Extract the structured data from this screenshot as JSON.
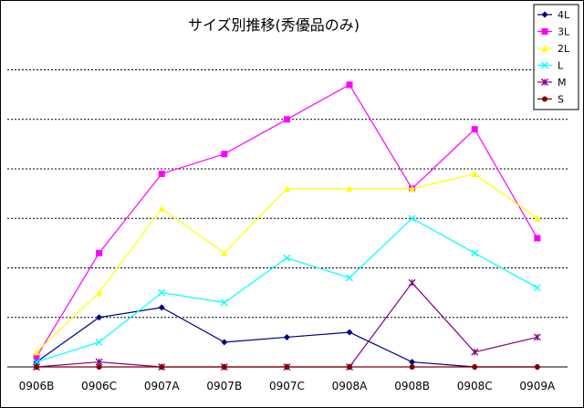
{
  "chart_data": {
    "type": "line",
    "title": "サイズ別推移(秀優品のみ)",
    "categories": [
      "0906B",
      "0906C",
      "0907A",
      "0907B",
      "0907C",
      "0908A",
      "0908B",
      "0908C",
      "0909A"
    ],
    "ylim": [
      0,
      6.6
    ],
    "gridlines": [
      1,
      2,
      3,
      4,
      5,
      6
    ],
    "grid": true,
    "legend": "top-right",
    "series": [
      {
        "name": "4L",
        "color": "#000080",
        "marker": "diamond",
        "values": [
          0.1,
          1.0,
          1.2,
          0.5,
          0.6,
          0.7,
          0.1,
          0.0,
          0.0
        ]
      },
      {
        "name": "3L",
        "color": "#ff00ff",
        "marker": "square",
        "values": [
          0.2,
          2.3,
          3.9,
          4.3,
          5.0,
          5.7,
          3.6,
          4.8,
          2.6
        ]
      },
      {
        "name": "2L",
        "color": "#ffff00",
        "marker": "triangle",
        "values": [
          0.3,
          1.5,
          3.2,
          2.3,
          3.6,
          3.6,
          3.6,
          3.9,
          3.0
        ]
      },
      {
        "name": "L",
        "color": "#00ffff",
        "marker": "x",
        "values": [
          0.1,
          0.5,
          1.5,
          1.3,
          2.2,
          1.8,
          3.0,
          2.3,
          1.6
        ]
      },
      {
        "name": "M",
        "color": "#800080",
        "marker": "star",
        "values": [
          0.0,
          0.1,
          0.0,
          0.0,
          0.0,
          0.0,
          1.7,
          0.3,
          0.6
        ]
      },
      {
        "name": "S",
        "color": "#800000",
        "marker": "circle",
        "values": [
          0.0,
          0.0,
          0.0,
          0.0,
          0.0,
          0.0,
          0.0,
          0.0,
          0.0
        ]
      }
    ]
  }
}
